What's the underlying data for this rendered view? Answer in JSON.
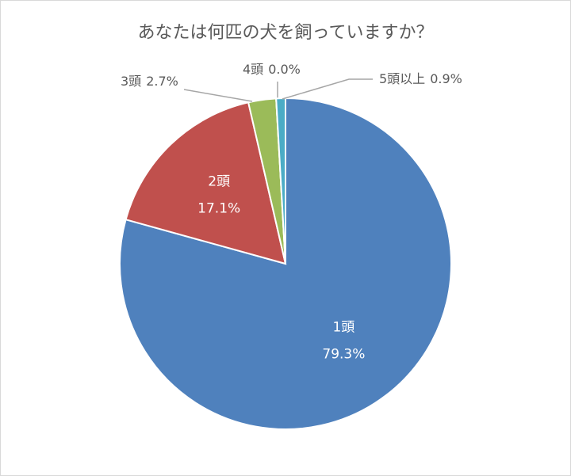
{
  "chart_data": {
    "type": "pie",
    "title": "あなたは何匹の犬を飼っていますか？",
    "categories": [
      "1頭",
      "2頭",
      "3頭",
      "4頭",
      "5頭以上"
    ],
    "values": [
      79.3,
      17.1,
      2.7,
      0.0,
      0.9
    ],
    "value_labels": [
      "79.3%",
      "17.1%",
      "2.7%",
      "0.0%",
      "0.9%"
    ],
    "colors": [
      "#4f81bd",
      "#c0504d",
      "#9bbb59",
      "#8064a2",
      "#4bacc6"
    ]
  }
}
